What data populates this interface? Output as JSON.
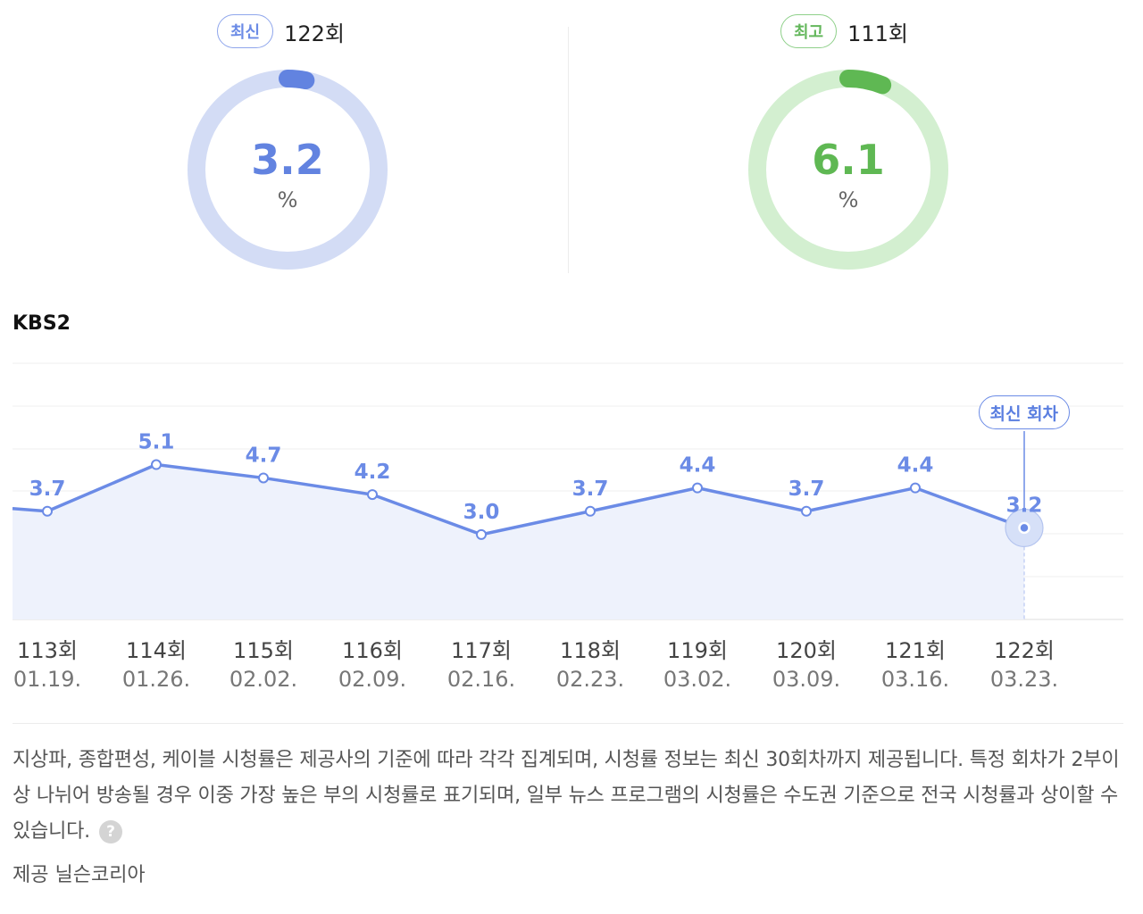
{
  "summary": {
    "latest": {
      "tag": "최신",
      "episode": "122회",
      "value": "3.2",
      "unit": "%",
      "fraction": 0.032,
      "color": "#6283e0",
      "track_color": "#d3dcf5"
    },
    "best": {
      "tag": "최고",
      "episode": "111회",
      "value": "6.1",
      "unit": "%",
      "fraction": 0.061,
      "color": "#5fb853",
      "track_color": "#d3efd0"
    }
  },
  "channel": "KBS2",
  "chart_data": {
    "type": "line",
    "categories": [
      "113회",
      "114회",
      "115회",
      "116회",
      "117회",
      "118회",
      "119회",
      "120회",
      "121회",
      "122회"
    ],
    "dates": [
      "01.19.",
      "01.26.",
      "02.02.",
      "02.09.",
      "02.16.",
      "02.23.",
      "03.02.",
      "03.09.",
      "03.16.",
      "03.23."
    ],
    "values": [
      3.7,
      5.1,
      4.7,
      4.2,
      3.0,
      3.7,
      4.4,
      3.7,
      4.4,
      3.2
    ],
    "value_labels": [
      "3.7",
      "5.1",
      "4.7",
      "4.2",
      "3.0",
      "3.7",
      "4.4",
      "3.7",
      "4.4",
      "3.2"
    ],
    "latest_label": "최신 회차",
    "line_color": "#6b8be6",
    "area_color": "#eef2fc",
    "grid": true
  },
  "footer": {
    "notice": "지상파, 종합편성, 케이블 시청률은 제공사의 기준에 따라 각각 집계되며, 시청률 정보는 최신 30회차까지 제공됩니다. 특정 회차가 2부이상 나뉘어 방송될 경우 이중 가장 높은 부의 시청률로 표기되며, 일부 뉴스 프로그램의 시청률은 수도권 기준으로 전국 시청률과 상이할 수 있습니다.",
    "help_icon": "?",
    "provider": "제공 닐슨코리아"
  }
}
